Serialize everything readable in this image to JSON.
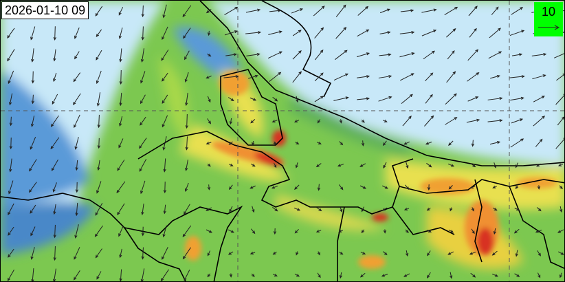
{
  "timestamp": "2026-01-10 09",
  "legend": {
    "reference_vector_value": "10",
    "icon": "reference-arrow-icon",
    "background": "#00ff00"
  },
  "colors": {
    "sea_light_blue": "#c8e8f8",
    "low_blue": "#5a9ad8",
    "green": "#7cc850",
    "yellow": "#e8e050",
    "orange": "#f0a030",
    "red": "#d83020"
  }
}
